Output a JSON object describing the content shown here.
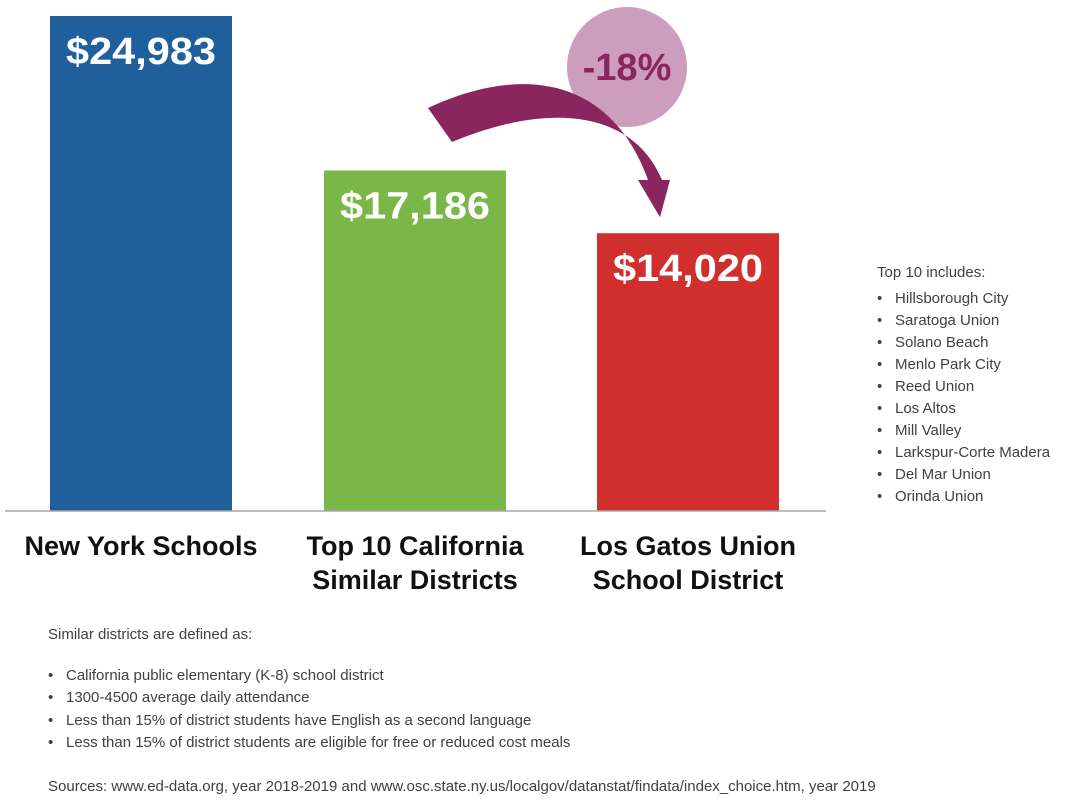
{
  "chart_data": {
    "type": "bar",
    "title": "",
    "xlabel": "",
    "ylabel": "",
    "ylim": [
      0,
      24983
    ],
    "categories": [
      [
        "New York Schools"
      ],
      [
        "Top 10 California",
        "Similar Districts"
      ],
      [
        "Los Gatos Union",
        "School District"
      ]
    ],
    "values": [
      24983,
      17186,
      14020
    ],
    "value_labels": [
      "$24,983",
      "$17,186",
      "$14,020"
    ],
    "colors": [
      "#1f5f9c",
      "#7ab648",
      "#d12f2e"
    ],
    "annotation": {
      "text": "-18%",
      "from": "Top 10 California Similar Districts",
      "to": "Los Gatos Union School District",
      "circle_color": "#cc9dbc",
      "arrow_color": "#8b2560"
    }
  },
  "top10": {
    "heading": "Top 10 includes:",
    "items": [
      "Hillsborough City",
      "Saratoga Union",
      "Solano Beach",
      "Menlo Park City",
      "Reed Union",
      "Los Altos",
      "Mill Valley",
      "Larkspur-Corte Madera",
      "Del Mar Union",
      "Orinda Union"
    ]
  },
  "definitions": {
    "heading": "Similar districts are defined as:",
    "items": [
      "California public elementary (K-8) school district",
      "1300-4500 average daily attendance",
      "Less than 15% of district students have English as a second language",
      "Less than 15% of district students are eligible for free or reduced cost meals"
    ]
  },
  "sources": "Sources: www.ed-data.org, year 2018-2019 and www.osc.state.ny.us/localgov/datanstat/findata/index_choice.htm, year 2019"
}
